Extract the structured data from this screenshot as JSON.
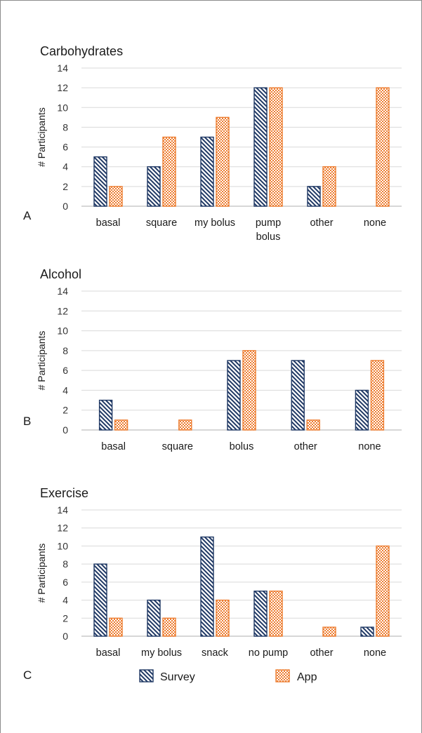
{
  "chart_data": [
    {
      "type": "bar",
      "panel": "A",
      "title": "Carbohydrates",
      "ylabel": "# Participants",
      "ylim": [
        0,
        14
      ],
      "yticks": [
        0,
        2,
        4,
        6,
        8,
        10,
        12,
        14
      ],
      "grid": true,
      "categories": [
        [
          "basal"
        ],
        [
          "square"
        ],
        [
          "my bolus"
        ],
        [
          "pump",
          "bolus"
        ],
        [
          "other"
        ],
        [
          "none"
        ]
      ],
      "series": [
        {
          "name": "Survey",
          "values": [
            5,
            4,
            7,
            12,
            2,
            0
          ]
        },
        {
          "name": "App",
          "values": [
            2,
            7,
            9,
            12,
            4,
            12
          ]
        }
      ]
    },
    {
      "type": "bar",
      "panel": "B",
      "title": "Alcohol",
      "ylabel": "# Participants",
      "ylim": [
        0,
        14
      ],
      "yticks": [
        0,
        2,
        4,
        6,
        8,
        10,
        12,
        14
      ],
      "grid": true,
      "categories": [
        [
          "basal"
        ],
        [
          "square"
        ],
        [
          "bolus"
        ],
        [
          "other"
        ],
        [
          "none"
        ]
      ],
      "series": [
        {
          "name": "Survey",
          "values": [
            3,
            0,
            7,
            7,
            4
          ]
        },
        {
          "name": "App",
          "values": [
            1,
            1,
            8,
            1,
            7
          ]
        }
      ]
    },
    {
      "type": "bar",
      "panel": "C",
      "title": "Exercise",
      "ylabel": "# Participants",
      "ylim": [
        0,
        14
      ],
      "yticks": [
        0,
        2,
        4,
        6,
        8,
        10,
        12,
        14
      ],
      "grid": true,
      "categories": [
        [
          "basal"
        ],
        [
          "my bolus"
        ],
        [
          "snack"
        ],
        [
          "no pump"
        ],
        [
          "other"
        ],
        [
          "none"
        ]
      ],
      "series": [
        {
          "name": "Survey",
          "values": [
            8,
            4,
            11,
            5,
            0,
            1
          ]
        },
        {
          "name": "App",
          "values": [
            2,
            2,
            4,
            5,
            1,
            10
          ]
        }
      ]
    }
  ],
  "legend": {
    "placement": "bottom",
    "items": [
      {
        "label": "Survey",
        "pattern": "diagonal-hatch",
        "color": "#1f3864"
      },
      {
        "label": "App",
        "pattern": "checkerboard",
        "color": "#ed7d31"
      }
    ]
  },
  "colors": {
    "survey": "#1f3864",
    "app": "#ed7d31",
    "grid": "#d9d9d9",
    "axis": "#bfbfbf"
  }
}
